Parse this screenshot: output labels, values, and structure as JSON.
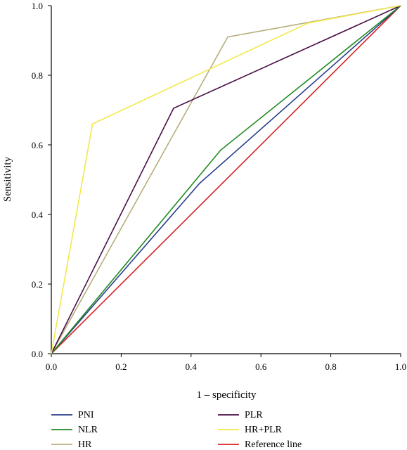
{
  "chart_data": {
    "type": "line",
    "title": "",
    "xlabel": "1 – specificity",
    "ylabel": "Sensitivity",
    "xlim": [
      0,
      1
    ],
    "ylim": [
      0,
      1
    ],
    "x_ticks": [
      "0.0",
      "0.2",
      "0.4",
      "0.6",
      "0.8",
      "1.0"
    ],
    "y_ticks": [
      "0.0",
      "0.2",
      "0.4",
      "0.6",
      "0.8",
      "1.0"
    ],
    "grid": false,
    "legend_position": "bottom",
    "series": [
      {
        "name": "PNI",
        "color": "#2b3f8c",
        "points": [
          [
            0,
            0
          ],
          [
            0.425,
            0.49
          ],
          [
            1,
            1
          ]
        ]
      },
      {
        "name": "NLR",
        "color": "#1f8a1f",
        "points": [
          [
            0,
            0
          ],
          [
            0.485,
            0.585
          ],
          [
            1,
            1
          ]
        ]
      },
      {
        "name": "HR",
        "color": "#b7ad7a",
        "points": [
          [
            0,
            0
          ],
          [
            0.505,
            0.91
          ],
          [
            1,
            1
          ]
        ]
      },
      {
        "name": "PLR",
        "color": "#4b0f47",
        "points": [
          [
            0,
            0
          ],
          [
            0.35,
            0.705
          ],
          [
            1,
            1
          ]
        ]
      },
      {
        "name": "HR+PLR",
        "color": "#f2e84b",
        "points": [
          [
            0,
            0
          ],
          [
            0.118,
            0.66
          ],
          [
            0.735,
            0.95
          ],
          [
            1,
            1
          ]
        ]
      },
      {
        "name": "Reference line",
        "color": "#d42323",
        "points": [
          [
            0,
            0
          ],
          [
            1,
            1
          ]
        ]
      }
    ]
  }
}
